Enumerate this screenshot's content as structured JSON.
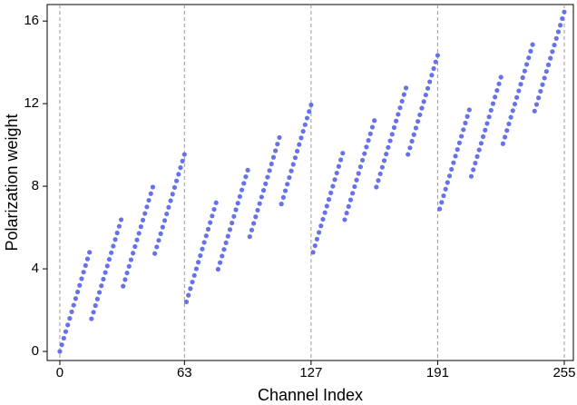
{
  "chart_data": {
    "type": "scatter",
    "x_label": "Channel Index",
    "y_label": "Polarization weight",
    "color": "#6673e8",
    "grid_x": true,
    "xlim": [
      -6.4,
      259.6
    ],
    "ylim": [
      -0.44,
      16.8
    ],
    "xticks": [
      0,
      63,
      127,
      191,
      255
    ],
    "yticks": [
      0,
      4,
      8,
      12,
      16
    ],
    "x": [
      0,
      1,
      2,
      3,
      4,
      5,
      6,
      7,
      8,
      9,
      10,
      11,
      12,
      13,
      14,
      15,
      16,
      17,
      18,
      19,
      20,
      21,
      22,
      23,
      24,
      25,
      26,
      27,
      28,
      29,
      30,
      31,
      32,
      33,
      34,
      35,
      36,
      37,
      38,
      39,
      40,
      41,
      42,
      43,
      44,
      45,
      46,
      47,
      48,
      49,
      50,
      51,
      52,
      53,
      54,
      55,
      56,
      57,
      58,
      59,
      60,
      61,
      62,
      63,
      64,
      65,
      66,
      67,
      68,
      69,
      70,
      71,
      72,
      73,
      74,
      75,
      76,
      77,
      78,
      79,
      80,
      81,
      82,
      83,
      84,
      85,
      86,
      87,
      88,
      89,
      90,
      91,
      92,
      93,
      94,
      95,
      96,
      97,
      98,
      99,
      100,
      101,
      102,
      103,
      104,
      105,
      106,
      107,
      108,
      109,
      110,
      111,
      112,
      113,
      114,
      115,
      116,
      117,
      118,
      119,
      120,
      121,
      122,
      123,
      124,
      125,
      126,
      127,
      128,
      129,
      130,
      131,
      132,
      133,
      134,
      135,
      136,
      137,
      138,
      139,
      140,
      141,
      142,
      143,
      144,
      145,
      146,
      147,
      148,
      149,
      150,
      151,
      152,
      153,
      154,
      155,
      156,
      157,
      158,
      159,
      160,
      161,
      162,
      163,
      164,
      165,
      166,
      167,
      168,
      169,
      170,
      171,
      172,
      173,
      174,
      175,
      176,
      177,
      178,
      179,
      180,
      181,
      182,
      183,
      184,
      185,
      186,
      187,
      188,
      189,
      190,
      191,
      192,
      193,
      194,
      195,
      196,
      197,
      198,
      199,
      200,
      201,
      202,
      203,
      204,
      205,
      206,
      207,
      208,
      209,
      210,
      211,
      212,
      213,
      214,
      215,
      216,
      217,
      218,
      219,
      220,
      221,
      222,
      223,
      224,
      225,
      226,
      227,
      228,
      229,
      230,
      231,
      232,
      233,
      234,
      235,
      236,
      237,
      238,
      239,
      240,
      241,
      242,
      243,
      244,
      245,
      246,
      247,
      248,
      249,
      250,
      251,
      252,
      253,
      254,
      255
    ],
    "values": [
      0,
      0.32,
      0.64,
      0.96,
      1.28,
      1.6,
      1.92,
      2.24,
      2.56,
      2.88,
      3.2,
      3.52,
      3.84,
      4.16,
      4.48,
      4.8,
      1.58,
      1.9,
      2.22,
      2.54,
      2.86,
      3.18,
      3.5,
      3.82,
      4.14,
      4.46,
      4.78,
      5.1,
      5.42,
      5.74,
      6.06,
      6.38,
      3.16,
      3.48,
      3.8,
      4.12,
      4.44,
      4.76,
      5.08,
      5.4,
      5.72,
      6.04,
      6.36,
      6.68,
      7,
      7.32,
      7.64,
      7.96,
      4.74,
      5.06,
      5.38,
      5.7,
      6.02,
      6.34,
      6.66,
      6.98,
      7.3,
      7.62,
      7.94,
      8.26,
      8.58,
      8.9,
      9.22,
      9.54,
      2.4,
      2.72,
      3.04,
      3.36,
      3.68,
      4,
      4.32,
      4.64,
      4.96,
      5.28,
      5.6,
      5.92,
      6.24,
      6.56,
      6.88,
      7.2,
      3.98,
      4.3,
      4.62,
      4.94,
      5.26,
      5.58,
      5.9,
      6.22,
      6.54,
      6.86,
      7.18,
      7.5,
      7.82,
      8.14,
      8.46,
      8.78,
      5.56,
      5.88,
      6.2,
      6.52,
      6.84,
      7.16,
      7.48,
      7.8,
      8.12,
      8.44,
      8.76,
      9.08,
      9.4,
      9.72,
      10.04,
      10.36,
      7.14,
      7.46,
      7.78,
      8.1,
      8.42,
      8.74,
      9.06,
      9.38,
      9.7,
      10.02,
      10.34,
      10.66,
      10.98,
      11.3,
      11.62,
      11.94,
      4.8,
      5.12,
      5.44,
      5.76,
      6.08,
      6.4,
      6.72,
      7.04,
      7.36,
      7.68,
      8,
      8.32,
      8.64,
      8.96,
      9.28,
      9.6,
      6.38,
      6.7,
      7.02,
      7.34,
      7.66,
      7.98,
      8.3,
      8.62,
      8.94,
      9.26,
      9.58,
      9.9,
      10.22,
      10.54,
      10.86,
      11.18,
      7.96,
      8.28,
      8.6,
      8.92,
      9.24,
      9.56,
      9.88,
      10.2,
      10.52,
      10.84,
      11.16,
      11.48,
      11.8,
      12.12,
      12.44,
      12.76,
      9.54,
      9.86,
      10.18,
      10.5,
      10.82,
      11.14,
      11.46,
      11.78,
      12.1,
      12.42,
      12.74,
      13.06,
      13.38,
      13.7,
      14.02,
      14.34,
      6.9,
      7.22,
      7.54,
      7.86,
      8.18,
      8.5,
      8.82,
      9.14,
      9.46,
      9.78,
      10.1,
      10.42,
      10.74,
      11.06,
      11.38,
      11.7,
      8.48,
      8.8,
      9.12,
      9.44,
      9.76,
      10.08,
      10.4,
      10.72,
      11.04,
      11.36,
      11.68,
      12,
      12.32,
      12.64,
      12.96,
      13.28,
      10.06,
      10.38,
      10.7,
      11.02,
      11.34,
      11.66,
      11.98,
      12.3,
      12.62,
      12.94,
      13.26,
      13.58,
      13.9,
      14.22,
      14.54,
      14.86,
      11.64,
      11.96,
      12.28,
      12.6,
      12.92,
      13.24,
      13.56,
      13.88,
      14.2,
      14.52,
      14.84,
      15.16,
      15.48,
      15.8,
      16.12,
      16.44
    ]
  }
}
